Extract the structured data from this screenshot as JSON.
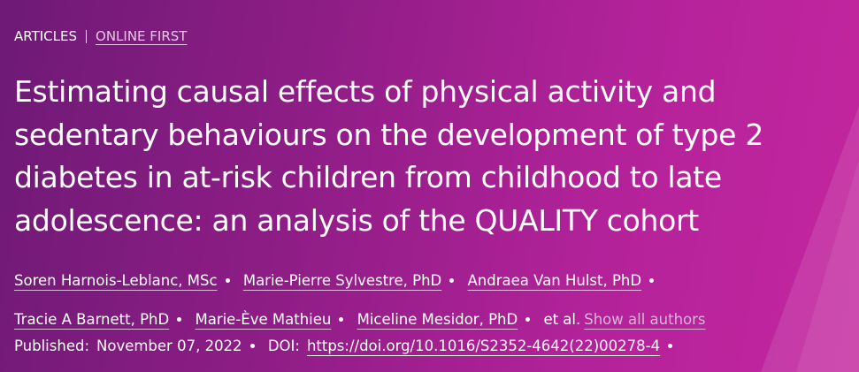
{
  "header": {
    "section": "ARTICLES",
    "subsection": "ONLINE FIRST",
    "title": "Estimating causal effects of physical activity and sedentary behaviours on the development of type 2 diabetes in at-risk children from childhood to late adolescence: an analysis of the QUALITY cohort",
    "authors": [
      "Soren Harnois-Leblanc, MSc",
      "Marie-Pierre Sylvestre, PhD",
      "Andraea Van Hulst, PhD",
      "Tracie A Barnett, PhD",
      "Marie-Ève Mathieu",
      "Miceline Mesidor, PhD"
    ],
    "et_al": "et al.",
    "show_all": "Show all authors",
    "published_label": "Published:",
    "published_date": "November 07, 2022",
    "doi_label": "DOI:",
    "doi": "https://doi.org/10.1016/S2352-4642(22)00278-4"
  }
}
